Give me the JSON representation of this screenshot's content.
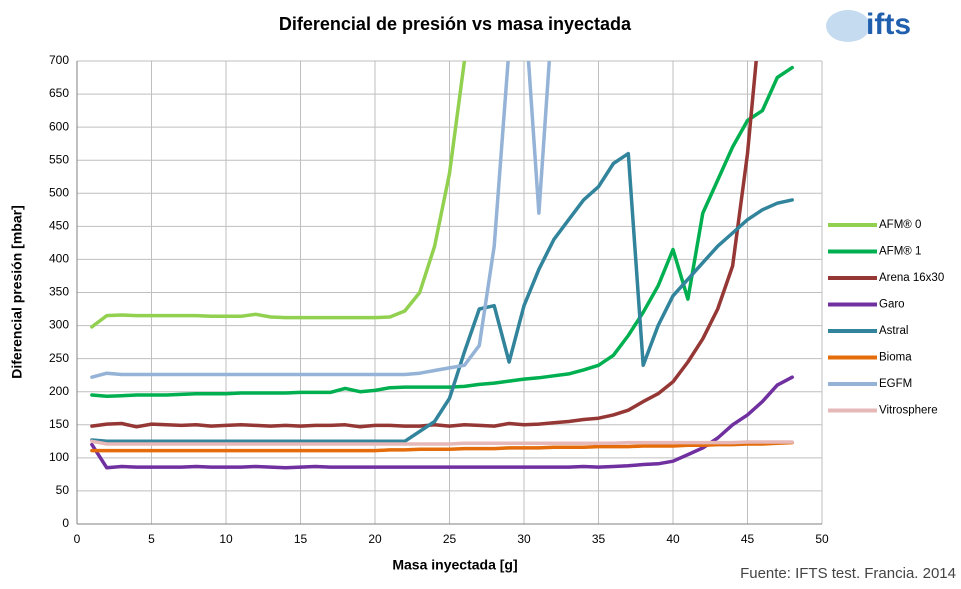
{
  "chart_data": {
    "type": "line",
    "title": "Diferencial de presión vs masa inyectada",
    "x_label": "Masa inyectada [g]",
    "y_label": "Diferencial presión [mbar]",
    "source": "Fuente: IFTS test. Francia. 2014",
    "logo": "ifts",
    "x": [
      1,
      2,
      3,
      4,
      5,
      6,
      7,
      8,
      9,
      10,
      11,
      12,
      13,
      14,
      15,
      16,
      17,
      18,
      19,
      20,
      21,
      22,
      23,
      24,
      25,
      26,
      27,
      28,
      29,
      30,
      31,
      32,
      33,
      34,
      35,
      36,
      37,
      38,
      39,
      40,
      41,
      42,
      43,
      44,
      45,
      46,
      47,
      48
    ],
    "series": [
      {
        "name": "AFM® 0",
        "color": "#92d050",
        "values": [
          298,
          315,
          316,
          315,
          315,
          315,
          315,
          315,
          314,
          314,
          314,
          317,
          313,
          312,
          312,
          312,
          312,
          312,
          312,
          312,
          313,
          322,
          350,
          420,
          530,
          700,
          null,
          null,
          null,
          null,
          null,
          null,
          null,
          null,
          null,
          null,
          null,
          null,
          null,
          null,
          null,
          null,
          null,
          null,
          null,
          null,
          null,
          null
        ]
      },
      {
        "name": "AFM® 1",
        "color": "#00b050",
        "values": [
          195,
          193,
          194,
          195,
          195,
          195,
          196,
          197,
          197,
          197,
          198,
          198,
          198,
          198,
          199,
          199,
          199,
          205,
          200,
          202,
          206,
          207,
          207,
          207,
          207,
          208,
          211,
          213,
          216,
          219,
          221,
          224,
          227,
          233,
          240,
          255,
          285,
          320,
          360,
          415,
          340,
          470,
          520,
          570,
          610,
          625,
          675,
          690
        ]
      },
      {
        "name": "Arena 16x30",
        "color": "#953735",
        "values": [
          148,
          151,
          152,
          147,
          151,
          150,
          149,
          150,
          148,
          149,
          150,
          149,
          148,
          149,
          148,
          149,
          149,
          150,
          147,
          149,
          149,
          148,
          148,
          150,
          148,
          150,
          149,
          148,
          152,
          150,
          151,
          153,
          155,
          158,
          160,
          165,
          172,
          185,
          197,
          215,
          245,
          280,
          325,
          390,
          560,
          800,
          null,
          null
        ]
      },
      {
        "name": "Garo",
        "color": "#7030a0",
        "values": [
          120,
          85,
          87,
          86,
          86,
          86,
          86,
          87,
          86,
          86,
          86,
          87,
          86,
          85,
          86,
          87,
          86,
          86,
          86,
          86,
          86,
          86,
          86,
          86,
          86,
          86,
          86,
          86,
          86,
          86,
          86,
          86,
          86,
          87,
          86,
          87,
          88,
          90,
          91,
          95,
          105,
          115,
          130,
          150,
          165,
          185,
          210,
          222
        ]
      },
      {
        "name": "Astral",
        "color": "#31849b",
        "values": [
          127,
          125,
          125,
          125,
          125,
          125,
          125,
          125,
          125,
          125,
          125,
          125,
          125,
          125,
          125,
          125,
          125,
          125,
          125,
          125,
          125,
          125,
          140,
          155,
          190,
          260,
          325,
          330,
          245,
          330,
          385,
          430,
          460,
          490,
          510,
          545,
          560,
          240,
          300,
          345,
          370,
          395,
          420,
          440,
          460,
          475,
          485,
          490
        ]
      },
      {
        "name": "Bioma",
        "color": "#e46c0a",
        "values": [
          111,
          111,
          111,
          111,
          111,
          111,
          111,
          111,
          111,
          111,
          111,
          111,
          111,
          111,
          111,
          111,
          111,
          111,
          111,
          111,
          112,
          112,
          113,
          113,
          113,
          114,
          114,
          114,
          115,
          115,
          115,
          116,
          116,
          116,
          117,
          117,
          117,
          118,
          118,
          118,
          119,
          119,
          120,
          120,
          121,
          121,
          122,
          123
        ]
      },
      {
        "name": "EGFM",
        "color": "#95b3d7",
        "values": [
          222,
          228,
          226,
          226,
          226,
          226,
          226,
          226,
          226,
          226,
          226,
          226,
          226,
          226,
          226,
          226,
          226,
          226,
          226,
          226,
          226,
          226,
          228,
          232,
          236,
          240,
          270,
          420,
          720,
          800,
          470,
          800,
          null,
          null,
          null,
          null,
          null,
          null,
          null,
          null,
          null,
          null,
          null,
          null,
          null,
          null,
          null,
          null
        ]
      },
      {
        "name": "Vitrosphere",
        "color": "#e6b9b8",
        "values": [
          125,
          121,
          121,
          121,
          121,
          121,
          121,
          121,
          121,
          121,
          121,
          121,
          121,
          121,
          121,
          121,
          121,
          121,
          121,
          121,
          121,
          121,
          121,
          121,
          121,
          122,
          122,
          122,
          122,
          122,
          122,
          122,
          122,
          122,
          122,
          122,
          123,
          123,
          123,
          123,
          123,
          123,
          123,
          123,
          124,
          124,
          124,
          124
        ]
      }
    ],
    "xlim": [
      0,
      50
    ],
    "xticks": [
      0,
      5,
      10,
      15,
      20,
      25,
      30,
      35,
      40,
      45,
      50
    ],
    "ylim": [
      0,
      700
    ],
    "yticks": [
      0,
      50,
      100,
      150,
      200,
      250,
      300,
      350,
      400,
      450,
      500,
      550,
      600,
      650,
      700
    ],
    "grid": true,
    "legend": "right"
  }
}
